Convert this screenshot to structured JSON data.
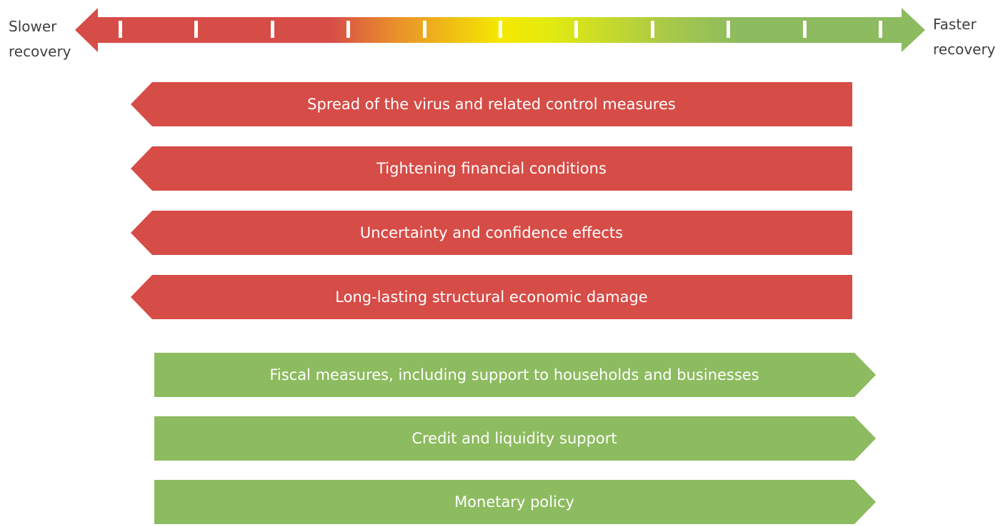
{
  "scale": {
    "left_label": [
      "Slower",
      "recovery"
    ],
    "right_label": [
      "Faster",
      "recovery"
    ]
  },
  "negative_factors": [
    "Spread of the virus and related control measures",
    "Tightening financial conditions",
    "Uncertainty and confidence effects",
    "Long-lasting structural economic damage"
  ],
  "positive_factors": [
    "Fiscal measures, including support to households and businesses",
    "Credit and liquidity support",
    "Monetary policy"
  ]
}
